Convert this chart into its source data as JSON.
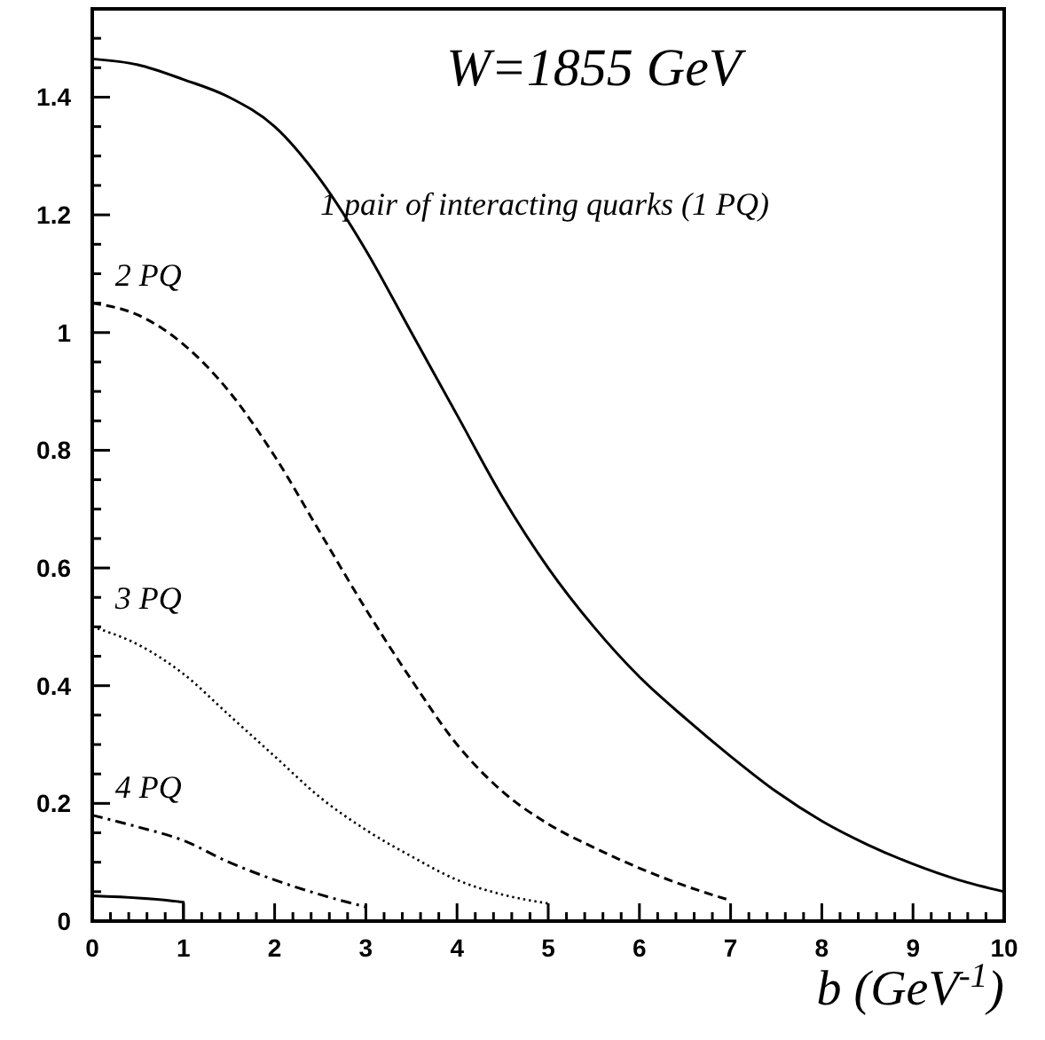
{
  "chart_data": {
    "type": "line",
    "title": "W=1855 GeV",
    "xlabel": "b (GeV$^{-1}$)",
    "xlim": [
      0,
      10
    ],
    "ylim": [
      0,
      1.55
    ],
    "xticks": [
      0,
      {
        "value": 0.2,
        "label": null
      },
      {
        "value": 0.4,
        "label": null
      },
      {
        "value": 0.6,
        "label": null
      },
      {
        "value": 0.8,
        "label": null
      },
      1,
      {
        "value": 1.2,
        "label": null
      },
      {
        "value": 1.4,
        "label": null
      },
      {
        "value": 1.6,
        "label": null
      },
      {
        "value": 1.8,
        "label": null
      },
      2,
      {
        "value": 2.2,
        "label": null
      },
      {
        "value": 2.4,
        "label": null
      },
      {
        "value": 2.6,
        "label": null
      },
      {
        "value": 2.8,
        "label": null
      },
      3,
      {
        "value": 3.2,
        "label": null
      },
      {
        "value": 3.4,
        "label": null
      },
      {
        "value": 3.6,
        "label": null
      },
      {
        "value": 3.8,
        "label": null
      },
      4,
      {
        "value": 4.2,
        "label": null
      },
      {
        "value": 4.4,
        "label": null
      },
      {
        "value": 4.6,
        "label": null
      },
      {
        "value": 4.8,
        "label": null
      },
      5,
      {
        "value": 5.2,
        "label": null
      },
      {
        "value": 5.4,
        "label": null
      },
      {
        "value": 5.6,
        "label": null
      },
      {
        "value": 5.8,
        "label": null
      },
      6,
      {
        "value": 6.2,
        "label": null
      },
      {
        "value": 6.4,
        "label": null
      },
      {
        "value": 6.6,
        "label": null
      },
      {
        "value": 6.8,
        "label": null
      },
      7,
      {
        "value": 7.2,
        "label": null
      },
      {
        "value": 7.4,
        "label": null
      },
      {
        "value": 7.6,
        "label": null
      },
      {
        "value": 7.8,
        "label": null
      },
      8,
      {
        "value": 8.2,
        "label": null
      },
      {
        "value": 8.4,
        "label": null
      },
      {
        "value": 8.6,
        "label": null
      },
      {
        "value": 8.8,
        "label": null
      },
      9,
      {
        "value": 9.2,
        "label": null
      },
      {
        "value": 9.4,
        "label": null
      },
      {
        "value": 9.6,
        "label": null
      },
      {
        "value": 9.8,
        "label": null
      },
      10
    ],
    "yticks": [
      0,
      {
        "value": 0.05,
        "label": null
      },
      {
        "value": 0.1,
        "label": null
      },
      {
        "value": 0.15,
        "label": null
      },
      0.2,
      {
        "value": 0.25,
        "label": null
      },
      {
        "value": 0.3,
        "label": null
      },
      {
        "value": 0.35,
        "label": null
      },
      0.4,
      {
        "value": 0.45,
        "label": null
      },
      {
        "value": 0.5,
        "label": null
      },
      {
        "value": 0.55,
        "label": null
      },
      0.6,
      {
        "value": 0.65,
        "label": null
      },
      {
        "value": 0.7,
        "label": null
      },
      {
        "value": 0.75,
        "label": null
      },
      0.8,
      {
        "value": 0.85,
        "label": null
      },
      {
        "value": 0.9,
        "label": null
      },
      {
        "value": 0.95,
        "label": null
      },
      1,
      {
        "value": 1.05,
        "label": null
      },
      {
        "value": 1.1,
        "label": null
      },
      {
        "value": 1.15,
        "label": null
      },
      1.2,
      {
        "value": 1.25,
        "label": null
      },
      {
        "value": 1.3,
        "label": null
      },
      {
        "value": 1.35,
        "label": null
      },
      1.4,
      {
        "value": 1.45,
        "label": null
      },
      {
        "value": 1.5,
        "label": null
      }
    ],
    "grid": false,
    "marker": "none",
    "series": [
      {
        "name": "1 pair of interacting quarks (1 PQ)",
        "color": "#000000",
        "line_style": "solid",
        "x": [
          0,
          0.5,
          1,
          1.5,
          2,
          2.5,
          3,
          3.5,
          4,
          4.5,
          5,
          5.5,
          6,
          6.5,
          7,
          7.5,
          8,
          8.5,
          9,
          9.5,
          10
        ],
        "values": [
          1.465,
          1.455,
          1.43,
          1.4,
          1.35,
          1.26,
          1.14,
          1.0,
          0.86,
          0.72,
          0.6,
          0.5,
          0.415,
          0.345,
          0.28,
          0.22,
          0.17,
          0.13,
          0.097,
          0.07,
          0.05
        ]
      },
      {
        "name": "2 PQ",
        "color": "#000000",
        "line_style": "dashed",
        "x": [
          0,
          0.5,
          1,
          1.5,
          2,
          2.5,
          3,
          3.5,
          4,
          4.5,
          5,
          5.5,
          6,
          6.5,
          7
        ],
        "values": [
          1.05,
          1.03,
          0.98,
          0.9,
          0.79,
          0.66,
          0.53,
          0.41,
          0.3,
          0.22,
          0.165,
          0.125,
          0.09,
          0.06,
          0.035
        ]
      },
      {
        "name": "3 PQ",
        "color": "#000000",
        "line_style": "dotted",
        "x": [
          0,
          0.5,
          1,
          1.5,
          2,
          2.5,
          3,
          3.5,
          4,
          4.5,
          5
        ],
        "values": [
          0.5,
          0.47,
          0.42,
          0.35,
          0.28,
          0.21,
          0.155,
          0.11,
          0.07,
          0.045,
          0.03
        ]
      },
      {
        "name": "4 PQ",
        "color": "#000000",
        "line_style": "dashdot",
        "x": [
          0,
          0.5,
          1,
          1.5,
          2,
          2.5,
          3
        ],
        "values": [
          0.18,
          0.16,
          0.137,
          0.1,
          0.07,
          0.045,
          0.024
        ]
      },
      {
        "color": "#000000",
        "line_style": "solid",
        "x": [
          0,
          1,
          1
        ],
        "values": [
          0.043,
          0.032,
          0
        ]
      }
    ]
  }
}
